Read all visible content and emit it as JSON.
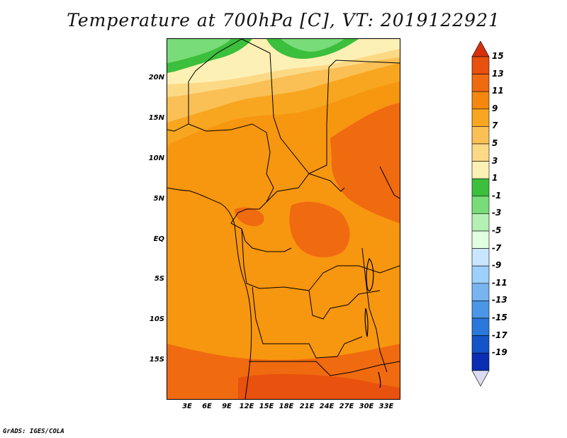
{
  "title": "Temperature at 700hPa [C], VT: 2019122921",
  "credit": "GrADS: IGES/COLA",
  "map": {
    "projection": "latlon",
    "lat_range": [
      -20,
      24
    ],
    "lon_range": [
      0,
      35
    ],
    "lat_labels": [
      "20N",
      "15N",
      "10N",
      "5N",
      "EQ",
      "5S",
      "10S",
      "15S"
    ],
    "lon_labels": [
      "3E",
      "6E",
      "9E",
      "12E",
      "15E",
      "18E",
      "21E",
      "24E",
      "27E",
      "30E",
      "33E"
    ]
  },
  "legend": {
    "labels": [
      "15",
      "13",
      "11",
      "9",
      "7",
      "5",
      "3",
      "1",
      "-1",
      "-3",
      "-5",
      "-7",
      "-9",
      "-11",
      "-13",
      "-15",
      "-17",
      "-19"
    ],
    "colors": [
      "#d62f0b",
      "#e8510e",
      "#f06a10",
      "#f5870f",
      "#f8a620",
      "#fac055",
      "#fcd985",
      "#fdf0b4",
      "#3cbf3c",
      "#78dc78",
      "#b4f0b4",
      "#e1ffe1",
      "#c8e6ff",
      "#9fcffb",
      "#78b4f0",
      "#4b96e6",
      "#2a78dc",
      "#1454c8",
      "#0a2db4",
      "#001478"
    ]
  }
}
